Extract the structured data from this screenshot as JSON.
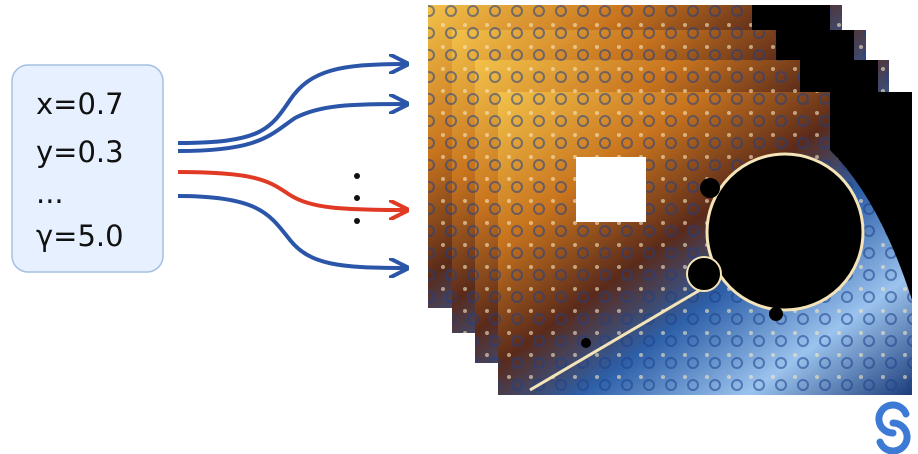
{
  "input_box": {
    "lines": [
      "x=0.7",
      "y=0.3",
      "...",
      "γ=5.0"
    ]
  }
}
